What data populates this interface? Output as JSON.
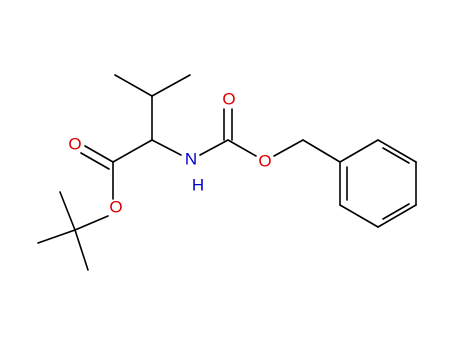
{
  "atoms": [
    {
      "label": "O"
    },
    {
      "label": "O"
    },
    {
      "label": "N"
    },
    {
      "label": "H"
    },
    {
      "label": "O"
    },
    {
      "label": "O"
    }
  ]
}
